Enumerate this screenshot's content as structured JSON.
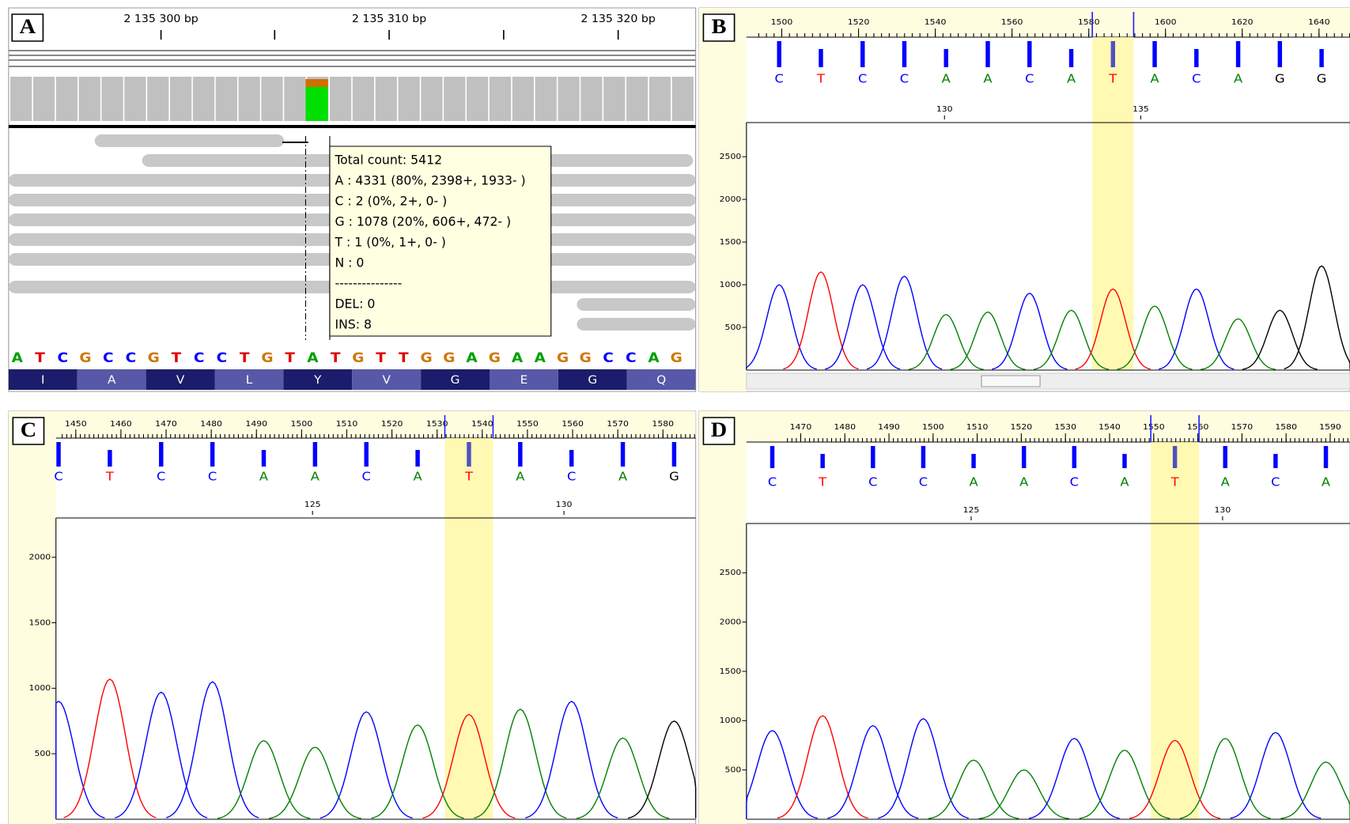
{
  "panel_a": {
    "label": "A",
    "ruler": [
      "2 135 300 bp",
      "2 135 310 bp",
      "2 135 320 bp"
    ],
    "tooltip": [
      "Total count: 5412",
      "A : 4331 (80%, 2398+, 1933- )",
      "C : 2 (0%, 2+, 0- )",
      "G : 1078 (20%, 606+, 472- )",
      "T : 1 (0%, 1+, 0- )",
      "N : 0",
      "---------------",
      "DEL: 0",
      "INS: 8"
    ],
    "sequence": [
      "A",
      "T",
      "C",
      "G",
      "C",
      "C",
      "G",
      "T",
      "C",
      "C",
      "T",
      "G",
      "T",
      "A",
      "T",
      "G",
      "T",
      "T",
      "G",
      "G",
      "A",
      "G",
      "A",
      "A",
      "G",
      "G",
      "C",
      "C",
      "A",
      "G"
    ],
    "amino_acids": [
      "I",
      "A",
      "V",
      "L",
      "Y",
      "V",
      "G",
      "E",
      "G",
      "Q"
    ]
  },
  "traces": [
    {
      "label": "B",
      "scale": [
        1500,
        1520,
        1540,
        1560,
        1580,
        1600,
        1620,
        1640
      ],
      "bases": [
        "C",
        "T",
        "C",
        "C",
        "A",
        "A",
        "C",
        "A",
        "T",
        "A",
        "C",
        "A",
        "G",
        "G"
      ],
      "positions": [
        130,
        135
      ],
      "ylim": [
        0,
        2900
      ],
      "yticks": [
        500,
        1000,
        1500,
        2000,
        2500
      ],
      "peaks": [
        1000,
        1150,
        1000,
        1100,
        650,
        680,
        900,
        700,
        950,
        750,
        950,
        600,
        700,
        1220
      ],
      "highlight": 8
    },
    {
      "label": "C",
      "scale": [
        1450,
        1460,
        1470,
        1480,
        1490,
        1500,
        1510,
        1520,
        1530,
        1540,
        1550,
        1560,
        1570,
        1580
      ],
      "bases": [
        "C",
        "T",
        "C",
        "C",
        "A",
        "A",
        "C",
        "A",
        "T",
        "A",
        "C",
        "A",
        "G"
      ],
      "positions": [
        125,
        130
      ],
      "ylim": [
        0,
        2300
      ],
      "yticks": [
        500,
        1000,
        1500,
        2000
      ],
      "peaks": [
        900,
        1070,
        970,
        1050,
        600,
        550,
        820,
        720,
        800,
        840,
        900,
        620,
        750
      ],
      "highlight": 8
    },
    {
      "label": "D",
      "scale": [
        1470,
        1480,
        1490,
        1500,
        1510,
        1520,
        1530,
        1540,
        1550,
        1560,
        1570,
        1580,
        1590
      ],
      "bases": [
        "C",
        "T",
        "C",
        "C",
        "A",
        "A",
        "C",
        "A",
        "T",
        "A",
        "C",
        "A"
      ],
      "positions": [
        125,
        130
      ],
      "ylim": [
        0,
        3000
      ],
      "yticks": [
        500,
        1000,
        1500,
        2000,
        2500
      ],
      "peaks": [
        900,
        1050,
        950,
        1020,
        600,
        500,
        820,
        700,
        800,
        820,
        880,
        580
      ],
      "highlight": 8
    }
  ]
}
